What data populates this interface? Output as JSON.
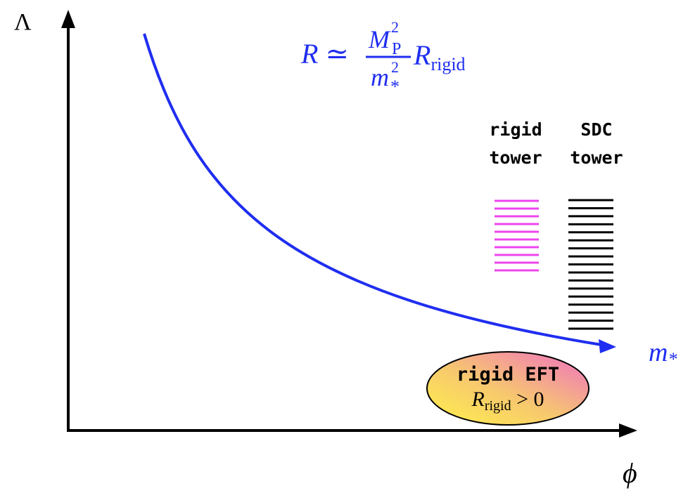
{
  "axes": {
    "y_label": "Λ",
    "x_label": "ϕ"
  },
  "curve": {
    "color": "#1f2ef0",
    "end_label": "m",
    "end_label_sub": "*"
  },
  "formula": {
    "lhs": "R ≃",
    "num_base": "M",
    "num_sup": "2",
    "num_sub": "P",
    "den_base": "m",
    "den_sup": "2",
    "den_sub": "*",
    "tail_base": "R",
    "tail_sub": "rigid"
  },
  "towers": {
    "rigid": {
      "label_line1": "rigid",
      "label_line2": "tower",
      "color": "#ee44ee",
      "line_count": 10
    },
    "sdc": {
      "label_line1": "SDC",
      "label_line2": "tower",
      "color": "#000000",
      "line_count": 17
    }
  },
  "eft_blob": {
    "title": "rigid EFT",
    "cond_base": "R",
    "cond_sub": "rigid",
    "cond_rel": " > 0"
  }
}
